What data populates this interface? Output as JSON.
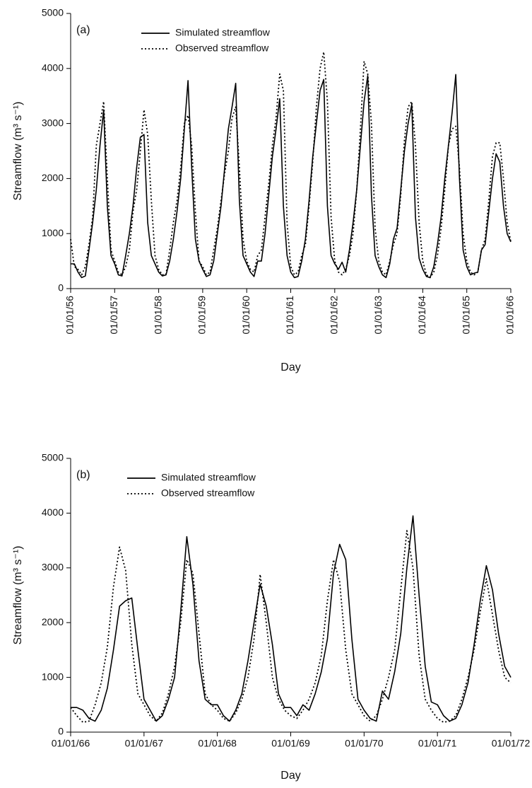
{
  "chart_data": [
    {
      "type": "line",
      "annotation": "(a)",
      "x_label": "Day",
      "y_label": "Streamflow (m³ s⁻¹)",
      "legend": "upper left",
      "ylim": [
        0,
        5000
      ],
      "yticks": [
        0,
        1000,
        2000,
        3000,
        4000,
        5000
      ],
      "categories": [
        "01/01/56",
        null,
        null,
        null,
        null,
        null,
        null,
        null,
        null,
        null,
        null,
        null,
        "01/01/57",
        null,
        null,
        null,
        null,
        null,
        null,
        null,
        null,
        null,
        null,
        null,
        "01/01/58",
        null,
        null,
        null,
        null,
        null,
        null,
        null,
        null,
        null,
        null,
        null,
        "01/01/59",
        null,
        null,
        null,
        null,
        null,
        null,
        null,
        null,
        null,
        null,
        null,
        "01/01/60",
        null,
        null,
        null,
        null,
        null,
        null,
        null,
        null,
        null,
        null,
        null,
        "01/01/61",
        null,
        null,
        null,
        null,
        null,
        null,
        null,
        null,
        null,
        null,
        null,
        "01/01/62",
        null,
        null,
        null,
        null,
        null,
        null,
        null,
        null,
        null,
        null,
        null,
        "01/01/63",
        null,
        null,
        null,
        null,
        null,
        null,
        null,
        null,
        null,
        null,
        null,
        "01/01/64",
        null,
        null,
        null,
        null,
        null,
        null,
        null,
        null,
        null,
        null,
        null,
        "01/01/65",
        null,
        null,
        null,
        null,
        null,
        null,
        null,
        null,
        null,
        null,
        null,
        "01/01/66"
      ],
      "series": [
        {
          "name": "Simulated streamflow",
          "color": "#000000",
          "dash": "solid",
          "values": [
            450,
            450,
            300,
            200,
            230,
            700,
            1200,
            1800,
            2600,
            3250,
            1500,
            600,
            450,
            250,
            230,
            600,
            1000,
            1500,
            2200,
            2750,
            2800,
            1200,
            600,
            450,
            300,
            230,
            250,
            500,
            900,
            1400,
            2000,
            2900,
            3780,
            2200,
            900,
            500,
            350,
            220,
            250,
            500,
            1000,
            1500,
            2200,
            2900,
            3300,
            3730,
            1600,
            600,
            450,
            300,
            220,
            500,
            500,
            1000,
            1700,
            2400,
            2900,
            3450,
            1500,
            600,
            300,
            200,
            220,
            500,
            900,
            1600,
            2400,
            3000,
            3600,
            3800,
            1500,
            600,
            450,
            350,
            480,
            300,
            700,
            1200,
            1800,
            2600,
            3400,
            3870,
            1700,
            600,
            400,
            250,
            200,
            450,
            900,
            1100,
            1800,
            2500,
            3000,
            3350,
            1300,
            550,
            350,
            220,
            200,
            400,
            800,
            1300,
            2000,
            2600,
            3200,
            3890,
            2000,
            700,
            400,
            250,
            280,
            300,
            700,
            800,
            1400,
            2000,
            2450,
            2300,
            1500,
            1000,
            850
          ]
        },
        {
          "name": "Observed streamflow",
          "color": "#000000",
          "dash": "dotted",
          "values": [
            900,
            400,
            350,
            250,
            400,
            800,
            1300,
            2600,
            3000,
            3400,
            2000,
            700,
            500,
            300,
            250,
            400,
            700,
            1400,
            1800,
            2500,
            3250,
            2800,
            1600,
            600,
            350,
            250,
            260,
            700,
            1200,
            1600,
            2200,
            3000,
            3150,
            2600,
            1400,
            500,
            400,
            250,
            300,
            700,
            1100,
            1600,
            2100,
            2500,
            3100,
            3300,
            2200,
            900,
            500,
            350,
            300,
            600,
            700,
            1300,
            1900,
            2600,
            3100,
            3900,
            3600,
            1200,
            400,
            250,
            300,
            600,
            800,
            1500,
            2300,
            3300,
            4000,
            4300,
            3400,
            1300,
            500,
            300,
            250,
            350,
            600,
            1000,
            1800,
            2900,
            4130,
            3900,
            3000,
            1100,
            500,
            300,
            250,
            500,
            800,
            1000,
            1700,
            2700,
            3300,
            3400,
            2600,
            1200,
            500,
            250,
            200,
            300,
            600,
            1100,
            1800,
            2600,
            2900,
            2950,
            2200,
            1000,
            500,
            300,
            250,
            300,
            700,
            900,
            1600,
            2400,
            2650,
            2650,
            2000,
            1200,
            850
          ]
        }
      ]
    },
    {
      "type": "line",
      "annotation": "(b)",
      "x_label": "Day",
      "y_label": "Streamflow (m³ s⁻¹)",
      "legend": "upper left",
      "ylim": [
        0,
        5000
      ],
      "yticks": [
        0,
        1000,
        2000,
        3000,
        4000,
        5000
      ],
      "categories": [
        "01/01/66",
        null,
        null,
        null,
        null,
        null,
        null,
        null,
        null,
        null,
        null,
        null,
        "01/01/67",
        null,
        null,
        null,
        null,
        null,
        null,
        null,
        null,
        null,
        null,
        null,
        "01/01/68",
        null,
        null,
        null,
        null,
        null,
        null,
        null,
        null,
        null,
        null,
        null,
        "01/01/69",
        null,
        null,
        null,
        null,
        null,
        null,
        null,
        null,
        null,
        null,
        null,
        "01/01/70",
        null,
        null,
        null,
        null,
        null,
        null,
        null,
        null,
        null,
        null,
        null,
        "01/01/71",
        null,
        null,
        null,
        null,
        null,
        null,
        null,
        null,
        null,
        null,
        null,
        "01/01/72"
      ],
      "series": [
        {
          "name": "Simulated streamflow",
          "color": "#000000",
          "dash": "solid",
          "values": [
            450,
            450,
            400,
            250,
            200,
            400,
            800,
            1500,
            2300,
            2400,
            2450,
            1500,
            600,
            400,
            200,
            300,
            600,
            1000,
            2200,
            3570,
            2700,
            1300,
            600,
            500,
            500,
            300,
            200,
            400,
            700,
            1300,
            2000,
            2700,
            2300,
            1600,
            700,
            450,
            450,
            300,
            500,
            400,
            700,
            1100,
            1700,
            2900,
            3430,
            3150,
            1700,
            600,
            400,
            250,
            200,
            750,
            600,
            1100,
            1800,
            3000,
            3950,
            2500,
            1200,
            550,
            500,
            300,
            200,
            250,
            500,
            900,
            1600,
            2400,
            3040,
            2600,
            1800,
            1200,
            1000
          ]
        },
        {
          "name": "Observed streamflow",
          "color": "#000000",
          "dash": "dotted",
          "values": [
            450,
            300,
            180,
            200,
            500,
            900,
            1550,
            2650,
            3380,
            2950,
            1600,
            700,
            500,
            300,
            200,
            350,
            700,
            1200,
            2000,
            3150,
            2900,
            1800,
            700,
            500,
            400,
            250,
            200,
            350,
            600,
            1000,
            1700,
            2880,
            2000,
            1000,
            600,
            400,
            300,
            250,
            400,
            600,
            900,
            1400,
            2400,
            3150,
            2750,
            1500,
            700,
            500,
            300,
            200,
            300,
            600,
            1000,
            1500,
            2600,
            3680,
            3000,
            1400,
            600,
            400,
            250,
            180,
            200,
            300,
            600,
            1000,
            1500,
            2200,
            2800,
            2150,
            1500,
            1000,
            900
          ]
        }
      ]
    }
  ]
}
